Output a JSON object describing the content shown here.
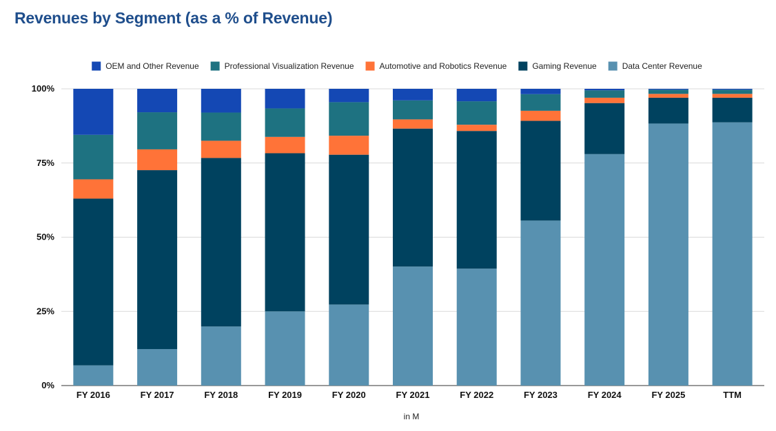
{
  "chart_data": {
    "type": "bar",
    "stacked": true,
    "title": "Revenues by Segment (as a % of Revenue)",
    "xlabel": "in M",
    "ylabel": "",
    "ylim": [
      0,
      100
    ],
    "yticks": [
      0,
      25,
      50,
      75,
      100
    ],
    "ytick_labels": [
      "0%",
      "25%",
      "50%",
      "75%",
      "100%"
    ],
    "grid": true,
    "legend_position": "top",
    "categories": [
      "FY 2016",
      "FY 2017",
      "FY 2018",
      "FY 2019",
      "FY 2020",
      "FY 2021",
      "FY 2022",
      "FY 2023",
      "FY 2024",
      "FY 2025",
      "TTM"
    ],
    "series": [
      {
        "name": "Data Center Revenue",
        "color": "#5891b0",
        "values": [
          6.8,
          12.3,
          19.9,
          25.0,
          27.3,
          40.1,
          39.4,
          55.6,
          78.0,
          88.3,
          88.7
        ]
      },
      {
        "name": "Gaming Revenue",
        "color": "#00425f",
        "values": [
          56.2,
          60.3,
          56.8,
          53.3,
          50.5,
          46.5,
          46.4,
          33.6,
          17.2,
          8.7,
          8.3
        ]
      },
      {
        "name": "Automotive and Robotics Revenue",
        "color": "#ff7338",
        "values": [
          6.5,
          7.0,
          5.8,
          5.5,
          6.4,
          3.1,
          2.1,
          3.4,
          1.8,
          1.3,
          1.3
        ]
      },
      {
        "name": "Professional Visualization Revenue",
        "color": "#1e7281",
        "values": [
          15.0,
          12.5,
          9.5,
          9.6,
          11.3,
          6.4,
          7.9,
          5.6,
          2.5,
          1.4,
          1.4
        ]
      },
      {
        "name": "OEM and Other Revenue",
        "color": "#1448b4",
        "values": [
          15.5,
          7.9,
          8.0,
          6.6,
          4.5,
          3.9,
          4.2,
          1.8,
          0.5,
          0.3,
          0.3
        ]
      }
    ],
    "legend_order": [
      "OEM and Other Revenue",
      "Professional Visualization Revenue",
      "Automotive and Robotics Revenue",
      "Gaming Revenue",
      "Data Center Revenue"
    ]
  }
}
